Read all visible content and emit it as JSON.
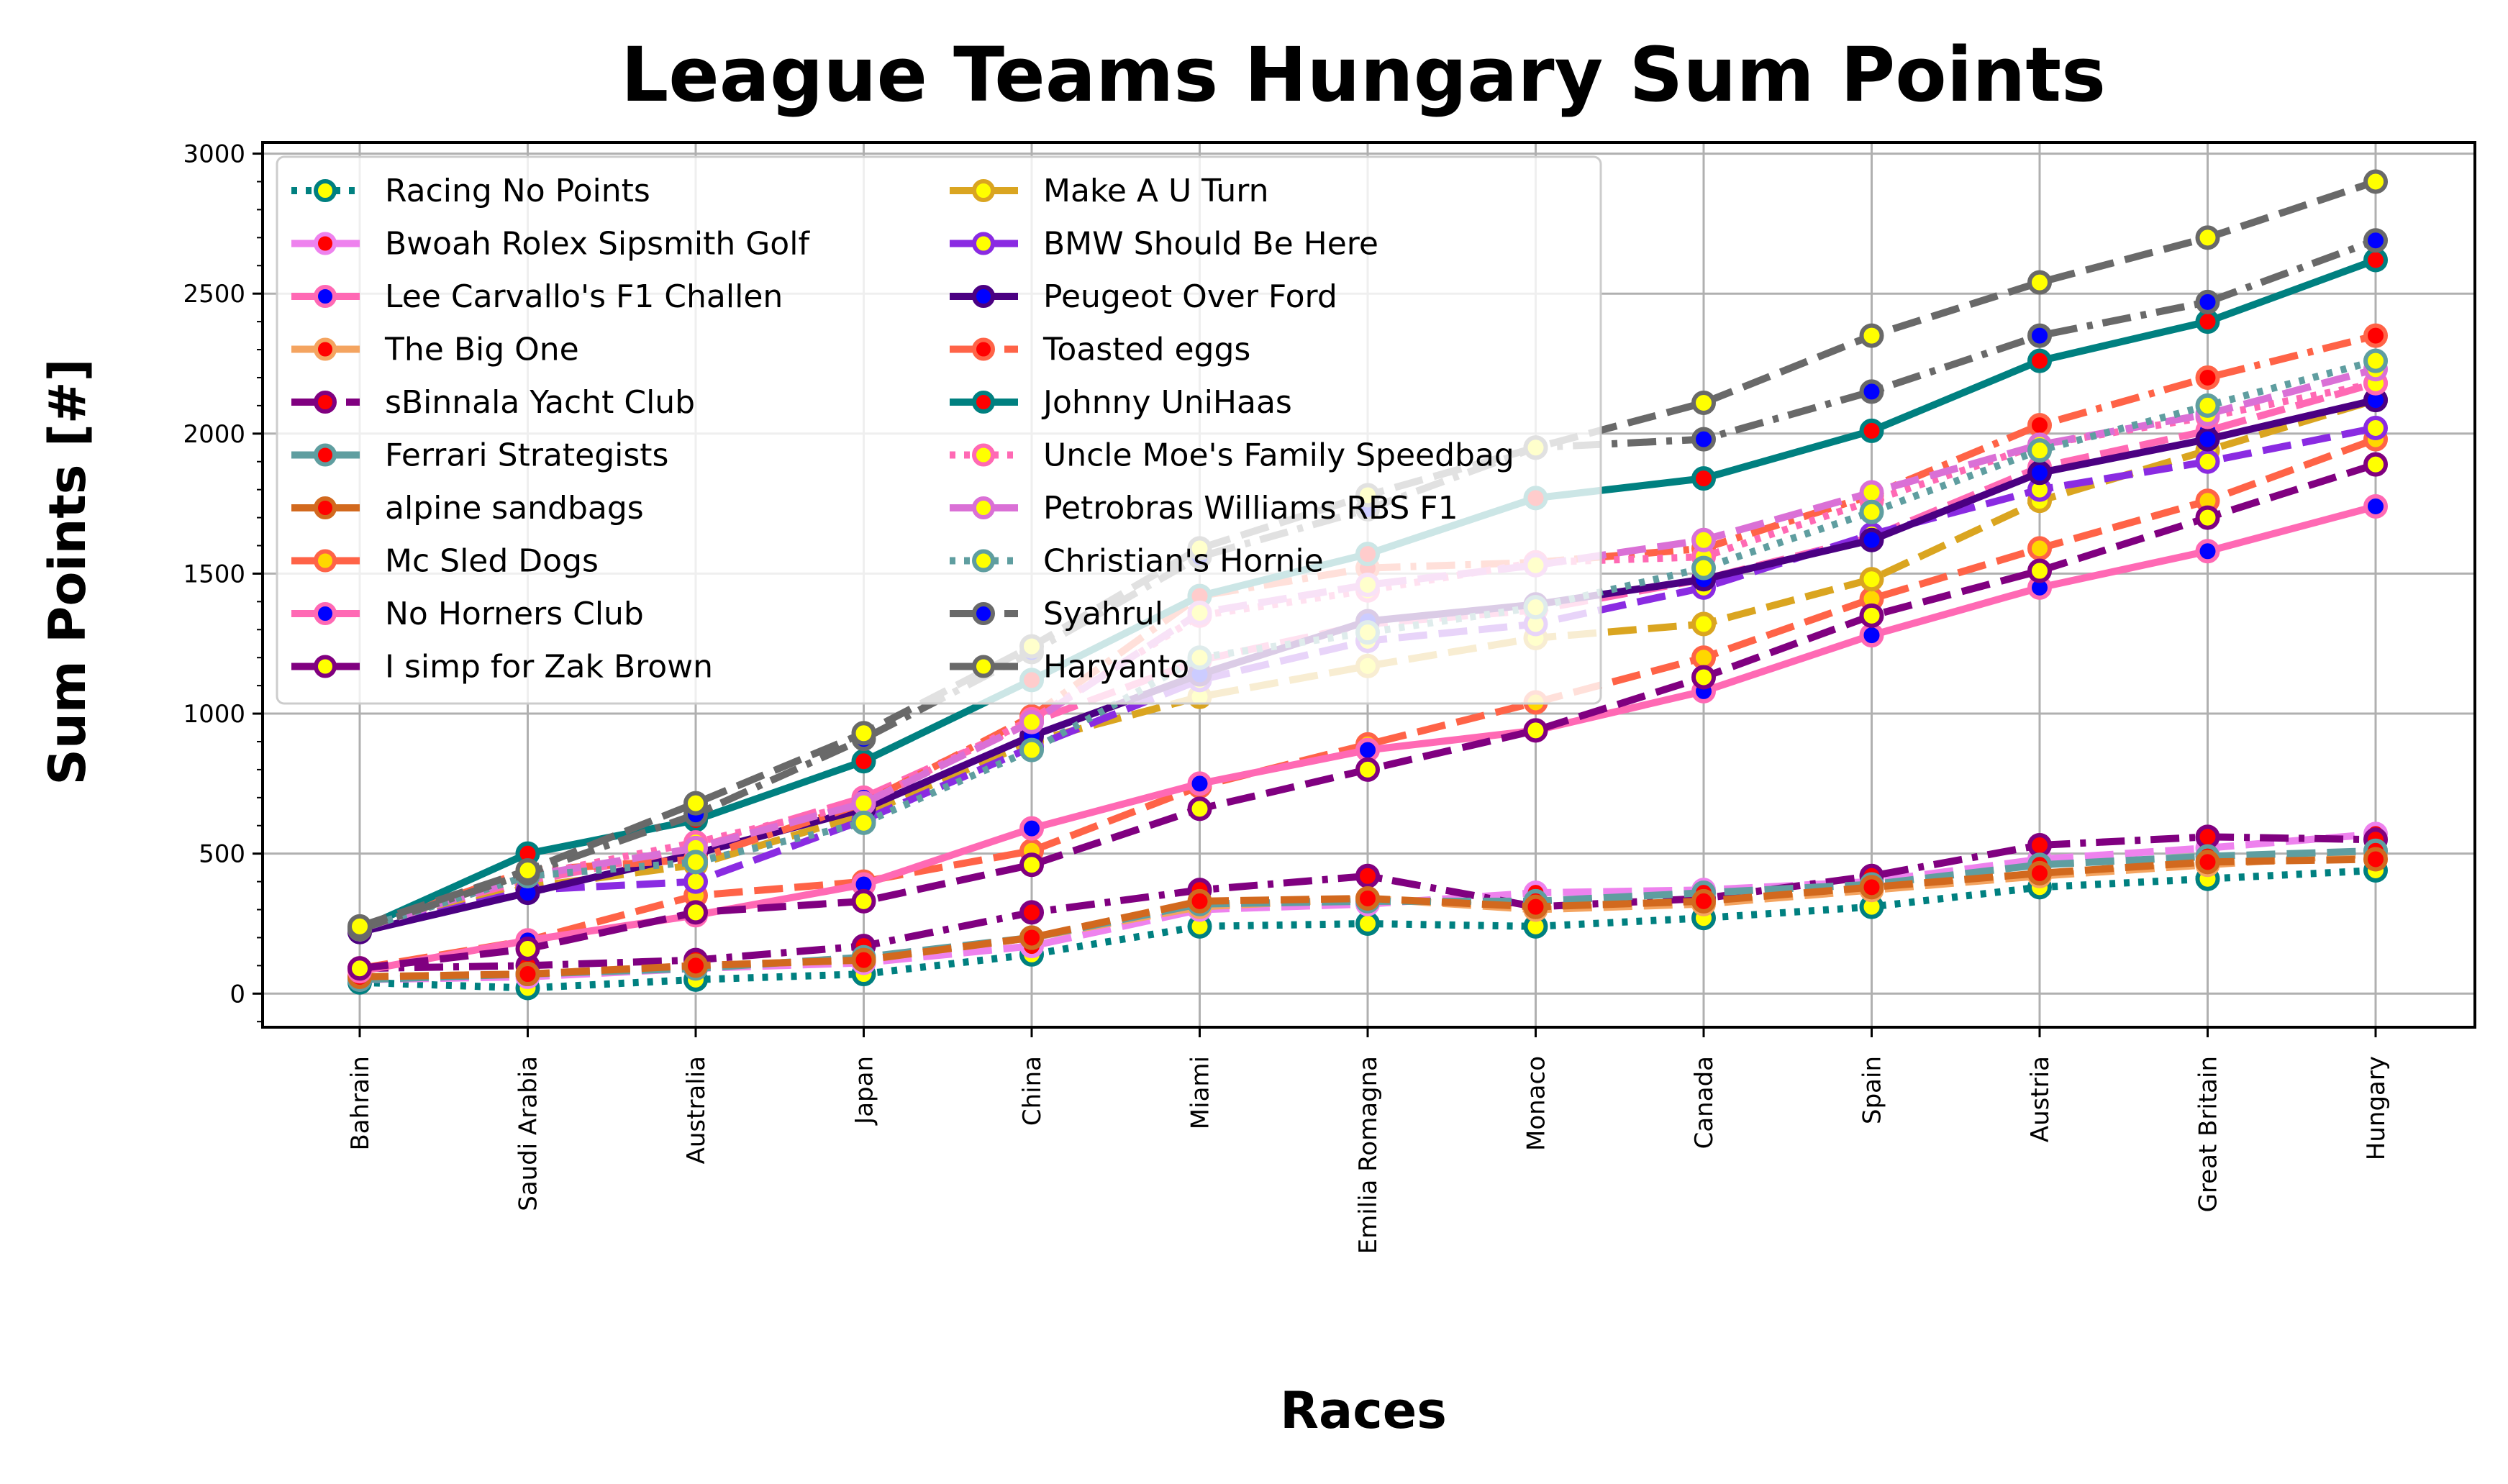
{
  "chart_data": {
    "type": "line",
    "title": "League Teams Hungary Sum Points",
    "xlabel": "Races",
    "ylabel": "Sum Points [#]",
    "categories": [
      "Bahrain",
      "Saudi Arabia",
      "Australia",
      "Japan",
      "China",
      "Miami",
      "Emilia Romagna",
      "Monaco",
      "Canada",
      "Spain",
      "Austria",
      "Great Britain",
      "Hungary"
    ],
    "ylim": [
      -120,
      3040
    ],
    "yticks": [
      0,
      500,
      1000,
      1500,
      2000,
      2500,
      3000
    ],
    "grid": true,
    "legend_position": "top-left",
    "series": [
      {
        "name": "Racing No Points",
        "color": "#008080",
        "dash": "dot",
        "marker_edge": "#008080",
        "marker_fill": "#ffff00",
        "values": [
          40,
          20,
          50,
          70,
          140,
          240,
          250,
          240,
          270,
          310,
          380,
          410,
          440
        ]
      },
      {
        "name": "Bwoah Rolex Sipsmith Golf",
        "color": "#ee82ee",
        "dash": "dash",
        "marker_edge": "#ee82ee",
        "marker_fill": "#ff0000",
        "values": [
          50,
          60,
          90,
          110,
          170,
          300,
          320,
          360,
          370,
          400,
          480,
          520,
          570
        ]
      },
      {
        "name": "Lee Carvallo's F1 Challen",
        "color": "#ff69b4",
        "dash": "dash",
        "marker_edge": "#ff69b4",
        "marker_fill": "#0000ff",
        "values": [
          230,
          400,
          520,
          700,
          970,
          1190,
          1320,
          1370,
          1480,
          1630,
          1880,
          2010,
          2180
        ]
      },
      {
        "name": "The Big One",
        "color": "#f4a460",
        "dash": "dash",
        "marker_edge": "#f4a460",
        "marker_fill": "#ff0000",
        "values": [
          60,
          70,
          100,
          120,
          200,
          310,
          340,
          300,
          320,
          370,
          420,
          460,
          500
        ]
      },
      {
        "name": "sBinnala Yacht Club",
        "color": "#800080",
        "dash": "dashdot",
        "marker_edge": "#800080",
        "marker_fill": "#ff0000",
        "values": [
          90,
          100,
          120,
          170,
          290,
          370,
          420,
          310,
          340,
          420,
          530,
          560,
          550
        ]
      },
      {
        "name": "Ferrari Strategists",
        "color": "#5f9ea0",
        "dash": "dash",
        "marker_edge": "#5f9ea0",
        "marker_fill": "#ff0000",
        "values": [
          50,
          70,
          90,
          130,
          200,
          320,
          330,
          330,
          360,
          390,
          460,
          490,
          510
        ]
      },
      {
        "name": "alpine sandbags",
        "color": "#d2691e",
        "dash": "dash",
        "marker_edge": "#d2691e",
        "marker_fill": "#ff0000",
        "values": [
          60,
          70,
          100,
          120,
          200,
          330,
          340,
          310,
          330,
          380,
          430,
          470,
          480
        ]
      },
      {
        "name": "Mc Sled Dogs",
        "color": "#ff6347",
        "dash": "dash",
        "marker_edge": "#ff6347",
        "marker_fill": "#ffd700",
        "values": [
          90,
          190,
          350,
          400,
          510,
          740,
          890,
          1040,
          1200,
          1410,
          1590,
          1760,
          1980
        ]
      },
      {
        "name": "No Horners Club",
        "color": "#ff69b4",
        "dash": "solid",
        "marker_edge": "#ff69b4",
        "marker_fill": "#0000ff",
        "values": [
          80,
          190,
          280,
          390,
          590,
          750,
          870,
          940,
          1080,
          1280,
          1450,
          1580,
          1740
        ]
      },
      {
        "name": "I simp for Zak Brown",
        "color": "#800080",
        "dash": "dash",
        "marker_edge": "#800080",
        "marker_fill": "#ffff00",
        "values": [
          90,
          160,
          290,
          330,
          460,
          660,
          800,
          940,
          1130,
          1350,
          1510,
          1700,
          1890
        ]
      },
      {
        "name": "Make A U Turn",
        "color": "#daa520",
        "dash": "dash",
        "marker_edge": "#daa520",
        "marker_fill": "#ffff00",
        "values": [
          220,
          380,
          460,
          640,
          900,
          1060,
          1170,
          1270,
          1320,
          1480,
          1760,
          1940,
          2120
        ]
      },
      {
        "name": "BMW Should Be Here",
        "color": "#8a2be2",
        "dash": "dash",
        "marker_edge": "#8a2be2",
        "marker_fill": "#ffff00",
        "values": [
          220,
          370,
          400,
          620,
          880,
          1120,
          1260,
          1320,
          1450,
          1640,
          1800,
          1900,
          2020
        ]
      },
      {
        "name": "Peugeot Over Ford",
        "color": "#4b0082",
        "dash": "solid",
        "marker_edge": "#4b0082",
        "marker_fill": "#0000ff",
        "values": [
          220,
          360,
          500,
          660,
          920,
          1140,
          1330,
          1390,
          1480,
          1620,
          1860,
          1980,
          2120
        ]
      },
      {
        "name": "Toasted eggs",
        "color": "#ff6347",
        "dash": "dashdot",
        "marker_edge": "#ff6347",
        "marker_fill": "#ff0000",
        "values": [
          230,
          440,
          480,
          680,
          990,
          1420,
          1520,
          1540,
          1590,
          1780,
          2030,
          2200,
          2350
        ]
      },
      {
        "name": "Johnny UniHaas",
        "color": "#008080",
        "dash": "solid",
        "marker_edge": "#008080",
        "marker_fill": "#ff0000",
        "values": [
          230,
          500,
          620,
          830,
          1120,
          1420,
          1570,
          1770,
          1840,
          2010,
          2260,
          2400,
          2620
        ]
      },
      {
        "name": "Uncle Moe's Family Speedbag",
        "color": "#ff69b4",
        "dash": "dot",
        "marker_edge": "#ff69b4",
        "marker_fill": "#ffff00",
        "values": [
          230,
          420,
          540,
          680,
          980,
          1350,
          1440,
          1540,
          1560,
          1760,
          1960,
          2060,
          2180
        ]
      },
      {
        "name": "Petrobras Williams RBS F1",
        "color": "#da70d6",
        "dash": "dash",
        "marker_edge": "#da70d6",
        "marker_fill": "#ffff00",
        "values": [
          230,
          420,
          520,
          680,
          970,
          1360,
          1460,
          1530,
          1620,
          1790,
          1960,
          2070,
          2230
        ]
      },
      {
        "name": "Christian's Hornie",
        "color": "#5f9ea0",
        "dash": "dot",
        "marker_edge": "#5f9ea0",
        "marker_fill": "#ffff00",
        "values": [
          230,
          420,
          470,
          610,
          870,
          1200,
          1290,
          1380,
          1520,
          1720,
          1940,
          2100,
          2260
        ]
      },
      {
        "name": "Syahrul",
        "color": "#696969",
        "dash": "dashdot",
        "marker_edge": "#696969",
        "marker_fill": "#0000ff",
        "values": [
          230,
          430,
          640,
          910,
          1220,
          1560,
          1730,
          1950,
          1980,
          2150,
          2350,
          2470,
          2690
        ]
      },
      {
        "name": "Haryanto",
        "color": "#696969",
        "dash": "dash",
        "marker_edge": "#696969",
        "marker_fill": "#ffff00",
        "values": [
          240,
          440,
          680,
          930,
          1240,
          1590,
          1780,
          1950,
          2110,
          2350,
          2540,
          2700,
          2900
        ]
      }
    ]
  }
}
